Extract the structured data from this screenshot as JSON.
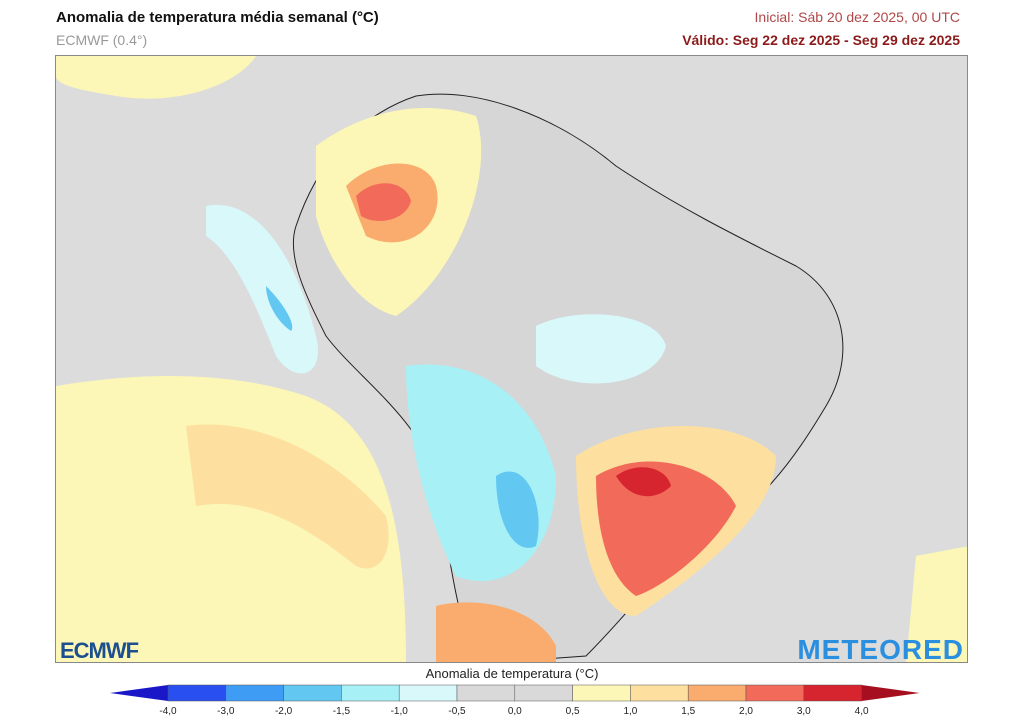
{
  "header": {
    "title": "Anomalia de temperatura média semanal (°C)",
    "model": "ECMWF (0.4°)",
    "initial": "Inicial: Sáb 20 dez 2025, 00 UTC",
    "valid": "Válido: Seg 22 dez 2025 - Seg 29 dez 2025"
  },
  "logos": {
    "left": "ECMWF",
    "right": "METEORED"
  },
  "colorbar": {
    "title": "Anomalia de temperatura (°C)",
    "ticks": [
      "-4,0",
      "-3,0",
      "-2,0",
      "-1,5",
      "-1,0",
      "-0,5",
      "0,0",
      "0,5",
      "1,0",
      "1,5",
      "2,0",
      "3,0",
      "4,0"
    ],
    "under_color": "#1a17c8",
    "over_color": "#a50f20",
    "colors": [
      "#2a4ff0",
      "#3f9cf5",
      "#62c8f2",
      "#a6f0f6",
      "#d9f8fa",
      "#d9d9d9",
      "#d9d9d9",
      "#fcf7b6",
      "#fde0a0",
      "#f9ac6e",
      "#f26b5a",
      "#d7252f"
    ]
  }
}
